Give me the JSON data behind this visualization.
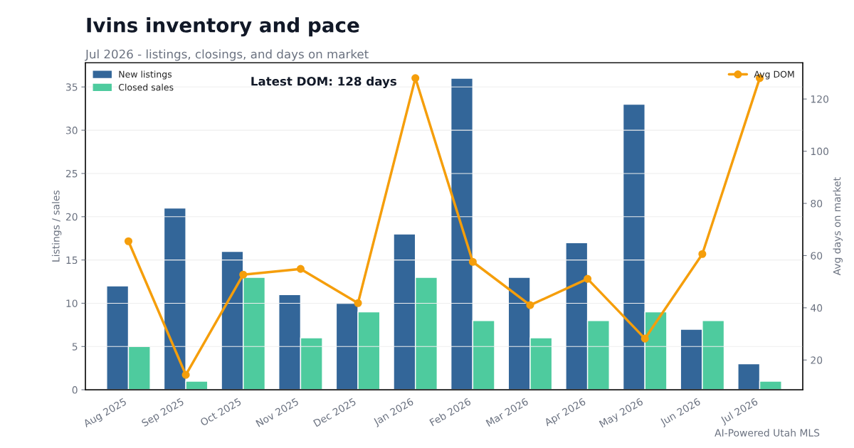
{
  "chart_data": {
    "type": "bar",
    "title": "Ivins inventory and pace",
    "subtitle": "Jul 2026 - listings, closings, and days on market",
    "ylabel": "Listings / sales",
    "y2label": "Avg days on market",
    "categories": [
      "Aug 2025",
      "Sep 2025",
      "Oct 2025",
      "Nov 2025",
      "Dec 2025",
      "Jan 2026",
      "Feb 2026",
      "Mar 2026",
      "Apr 2026",
      "May 2026",
      "Jun 2026",
      "Jul 2026"
    ],
    "series": [
      {
        "name": "New listings",
        "color": "#336699",
        "values": [
          12,
          21,
          16,
          11,
          10,
          18,
          36,
          13,
          17,
          33,
          7,
          3
        ]
      },
      {
        "name": "Closed sales",
        "color": "#4ecb9e",
        "values": [
          5,
          1,
          13,
          6,
          9,
          13,
          8,
          6,
          8,
          9,
          8,
          1
        ]
      },
      {
        "name": "Avg DOM",
        "type": "line",
        "axis": "y2",
        "color": "#f59e0b",
        "marker": "circle",
        "line_style": "solid",
        "values": [
          65.5,
          14.3,
          52.7,
          54.9,
          41.8,
          128,
          57.6,
          41.0,
          51.1,
          28.2,
          60.6,
          128
        ]
      }
    ],
    "ylim": [
      0,
      37.8
    ],
    "yticks": [
      0,
      5,
      10,
      15,
      20,
      25,
      30,
      35
    ],
    "y2lim": [
      8.6,
      133.9
    ],
    "y2ticks": [
      20,
      40,
      60,
      80,
      100,
      120
    ],
    "grid": "y",
    "legend": "top left",
    "annotations": [
      "Latest DOM: 128 days",
      "AI-Powered Utah MLS"
    ]
  }
}
